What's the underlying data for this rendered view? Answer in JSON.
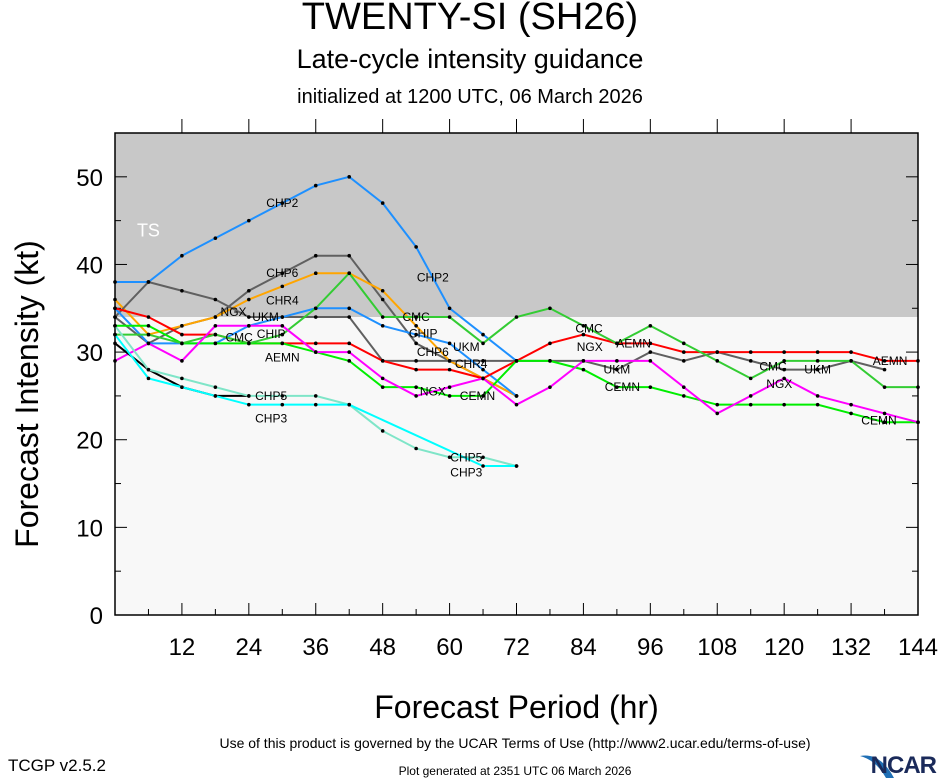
{
  "chart_data": {
    "type": "line",
    "title": "TWENTY-SI (SH26)",
    "subtitle": "Late-cycle intensity guidance",
    "initialized": "initialized at 1200 UTC, 06 March 2026",
    "xlabel": "Forecast Period (hr)",
    "ylabel": "Forecast Intensity (kt)",
    "xlim": [
      0,
      144
    ],
    "ylim": [
      0,
      55
    ],
    "xticks": [
      12,
      24,
      36,
      48,
      60,
      72,
      84,
      96,
      108,
      120,
      132,
      144
    ],
    "yticks": [
      0,
      10,
      20,
      30,
      40,
      50
    ],
    "grid": false,
    "bands": [
      {
        "label": "TS",
        "from": 34,
        "to": 55,
        "color": "#c8c8c8"
      },
      {
        "label": "",
        "from": 0,
        "to": 34,
        "color": "#f8f8f8"
      }
    ],
    "series": [
      {
        "name": "CHP2",
        "color": "#1e90ff",
        "label_hr": [
          30,
          57
        ],
        "x": [
          0,
          6,
          12,
          18,
          24,
          30,
          36,
          42,
          48,
          54,
          60,
          66,
          72
        ],
        "y": [
          38,
          38,
          41,
          43,
          45,
          47,
          49,
          50,
          47,
          42,
          35,
          32,
          29
        ]
      },
      {
        "name": "CHP6",
        "color": "#606060",
        "label_hr": [
          30,
          57
        ],
        "x": [
          0,
          6,
          12,
          18,
          24,
          30,
          36,
          42,
          48,
          54,
          60,
          66,
          72
        ],
        "y": [
          34,
          31,
          33,
          34,
          37,
          39,
          41,
          41,
          36,
          31,
          29,
          27,
          25
        ]
      },
      {
        "name": "CHR4",
        "color": "#ffa500",
        "label_hr": [
          30,
          61
        ],
        "x": [
          0,
          6,
          12,
          18,
          24,
          30,
          36,
          42,
          48,
          54,
          60,
          66,
          72
        ],
        "y": [
          36,
          32,
          33,
          34,
          36,
          37.5,
          39,
          39,
          37,
          33,
          29,
          27,
          25
        ]
      },
      {
        "name": "UKM",
        "color": "#606060",
        "label_hr": [
          27,
          63,
          90,
          126
        ],
        "x": [
          0,
          6,
          12,
          18,
          24,
          30,
          36,
          42,
          48,
          54,
          60,
          66,
          72,
          78,
          84,
          90,
          96,
          102,
          108,
          114,
          120,
          126,
          132,
          138
        ],
        "y": [
          34,
          38,
          37,
          36,
          34,
          34,
          34,
          34,
          29,
          29,
          29,
          29,
          29,
          29,
          29,
          28,
          30,
          29,
          30,
          29,
          28,
          28,
          29,
          28
        ]
      },
      {
        "name": "CHIP",
        "color": "#1e90ff",
        "label_hr": [
          28,
          61
        ],
        "x": [
          0,
          6,
          12,
          18,
          24,
          30,
          36,
          42,
          48,
          54,
          60,
          66,
          72
        ],
        "y": [
          35,
          31,
          31,
          31,
          33,
          34,
          35,
          35,
          33,
          32,
          31,
          28,
          25
        ]
      },
      {
        "name": "AEMN",
        "color": "#ff0000",
        "label_hr": [
          30,
          93,
          139
        ],
        "x": [
          0,
          6,
          12,
          18,
          24,
          30,
          36,
          42,
          48,
          54,
          60,
          66,
          72,
          78,
          84,
          90,
          96,
          102,
          108,
          114,
          120,
          126,
          132,
          138,
          144
        ],
        "y": [
          35,
          34,
          32,
          32,
          31,
          31,
          31,
          31,
          29,
          28,
          28,
          27,
          29,
          31,
          32,
          31,
          31,
          30,
          30,
          30,
          30,
          30,
          30,
          29,
          29
        ]
      },
      {
        "name": "CEMN",
        "color": "#00ee00",
        "label_hr": [
          65,
          91,
          137
        ],
        "x": [
          0,
          6,
          12,
          18,
          24,
          30,
          36,
          42,
          48,
          54,
          60,
          66,
          72,
          78,
          84,
          90,
          96,
          102,
          108,
          114,
          120,
          126,
          132,
          138,
          144
        ],
        "y": [
          33,
          33,
          31,
          31,
          31,
          31,
          30,
          29,
          26,
          26,
          25,
          25,
          29,
          29,
          28,
          26,
          26,
          25,
          24,
          24,
          24,
          24,
          23,
          22,
          22
        ]
      },
      {
        "name": "CMC",
        "color": "#33cc33",
        "label_hr": [
          28,
          54,
          85,
          118
        ],
        "x": [
          0,
          6,
          12,
          18,
          24,
          30,
          36,
          42,
          48,
          54,
          60,
          66,
          72,
          78,
          84,
          90,
          96,
          102,
          108,
          114,
          120,
          126,
          132,
          138,
          144
        ],
        "y": [
          32,
          32,
          31,
          32,
          31,
          32,
          35,
          39,
          34,
          34,
          34,
          31,
          34,
          35,
          33,
          31,
          33,
          31,
          29,
          27,
          29,
          29,
          29,
          26,
          26
        ]
      },
      {
        "name": "NGX",
        "color": "#ff00ff",
        "label_hr": [
          27,
          57,
          88,
          122
        ],
        "x": [
          0,
          6,
          12,
          18,
          24,
          30,
          36,
          42,
          48,
          54,
          60,
          66,
          72,
          78,
          84,
          90,
          96,
          102,
          108,
          114,
          120,
          126,
          132,
          138,
          144
        ],
        "y": [
          29,
          31,
          29,
          33,
          33,
          33,
          30,
          30,
          27,
          25,
          26,
          27,
          24,
          26,
          29,
          29,
          29,
          26,
          23,
          25,
          27,
          25,
          24,
          23,
          22
        ]
      },
      {
        "name": "CHP5",
        "color": "#000000",
        "label_hr": [
          28
        ],
        "x": [
          0,
          6,
          12,
          18,
          24
        ],
        "y": [
          31,
          28,
          26,
          25,
          25
        ]
      },
      {
        "name": "CHP5",
        "color": "#7fe5c8",
        "label_hr": [
          63
        ],
        "x": [
          0,
          6,
          12,
          18,
          24,
          30,
          36,
          42,
          48,
          54,
          60,
          66,
          72
        ],
        "y": [
          33,
          28,
          27,
          26,
          25,
          25,
          25,
          24,
          21,
          19,
          18,
          18,
          17
        ]
      },
      {
        "name": "CHP3",
        "color": "#00ffff",
        "label_hr": [
          28,
          63
        ],
        "x": [
          0,
          6,
          12,
          18,
          24,
          30,
          36,
          42,
          66,
          72
        ],
        "y": [
          32,
          27,
          26,
          25,
          24,
          24,
          24,
          24,
          17,
          17
        ]
      }
    ]
  },
  "footer": {
    "terms": "Use of this product is governed by the UCAR Terms of Use (http://www2.ucar.edu/terms-of-use)",
    "version": "TCGP v2.5.2",
    "generated": "Plot generated at 2351 UTC   06 March 2026",
    "logo": "NCAR"
  }
}
